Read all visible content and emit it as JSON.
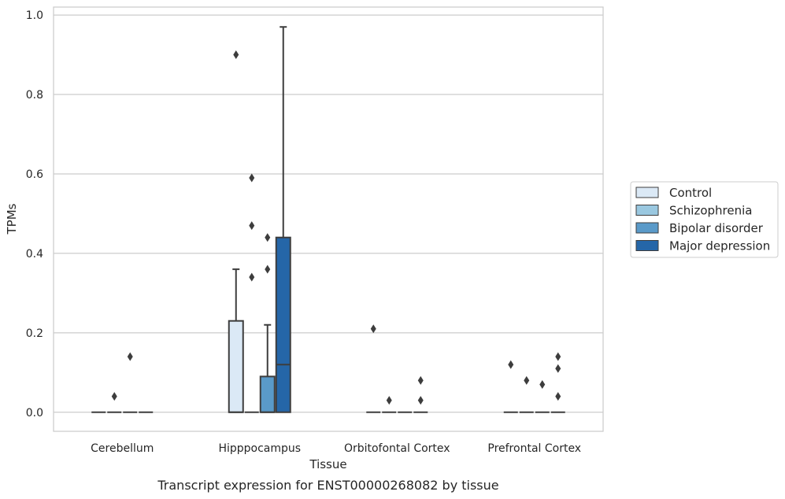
{
  "chart_data": {
    "type": "boxplot",
    "xlabel": "Tissue",
    "ylabel": "TPMs",
    "caption": "Transcript expression for ENST00000268082 by tissue",
    "ylim": [
      -0.048,
      1.02
    ],
    "yticks": [
      0.0,
      0.2,
      0.4,
      0.6,
      0.8,
      1.0
    ],
    "ytick_labels": [
      "0.0",
      "0.2",
      "0.4",
      "0.6",
      "0.8",
      "1.0"
    ],
    "grid": "horizontal",
    "legend_position": "right",
    "categories": [
      "Cerebellum",
      "Hipppocampus",
      "Orbitofontal Cortex",
      "Prefrontal Cortex"
    ],
    "series": [
      {
        "name": "Control",
        "color": "#dbe9f6",
        "boxes": [
          {
            "q1": 0.0,
            "median": 0.0,
            "q3": 0.0,
            "whisker_low": 0.0,
            "whisker_high": 0.0,
            "outliers": []
          },
          {
            "q1": 0.0,
            "median": 0.0,
            "q3": 0.23,
            "whisker_low": 0.0,
            "whisker_high": 0.36,
            "outliers": [
              0.9
            ]
          },
          {
            "q1": 0.0,
            "median": 0.0,
            "q3": 0.0,
            "whisker_low": 0.0,
            "whisker_high": 0.0,
            "outliers": [
              0.21
            ]
          },
          {
            "q1": 0.0,
            "median": 0.0,
            "q3": 0.0,
            "whisker_low": 0.0,
            "whisker_high": 0.0,
            "outliers": [
              0.12
            ]
          }
        ]
      },
      {
        "name": "Schizophrenia",
        "color": "#9ac8e0",
        "boxes": [
          {
            "q1": 0.0,
            "median": 0.0,
            "q3": 0.0,
            "whisker_low": 0.0,
            "whisker_high": 0.0,
            "outliers": [
              0.04
            ]
          },
          {
            "q1": 0.0,
            "median": 0.0,
            "q3": 0.0,
            "whisker_low": 0.0,
            "whisker_high": 0.0,
            "outliers": [
              0.59,
              0.47,
              0.34
            ]
          },
          {
            "q1": 0.0,
            "median": 0.0,
            "q3": 0.0,
            "whisker_low": 0.0,
            "whisker_high": 0.0,
            "outliers": [
              0.03
            ]
          },
          {
            "q1": 0.0,
            "median": 0.0,
            "q3": 0.0,
            "whisker_low": 0.0,
            "whisker_high": 0.0,
            "outliers": [
              0.08
            ]
          }
        ]
      },
      {
        "name": "Bipolar disorder",
        "color": "#5a9ac9",
        "boxes": [
          {
            "q1": 0.0,
            "median": 0.0,
            "q3": 0.0,
            "whisker_low": 0.0,
            "whisker_high": 0.0,
            "outliers": [
              0.14
            ]
          },
          {
            "q1": 0.0,
            "median": 0.0,
            "q3": 0.09,
            "whisker_low": 0.0,
            "whisker_high": 0.22,
            "outliers": [
              0.44,
              0.36
            ]
          },
          {
            "q1": 0.0,
            "median": 0.0,
            "q3": 0.0,
            "whisker_low": 0.0,
            "whisker_high": 0.0,
            "outliers": []
          },
          {
            "q1": 0.0,
            "median": 0.0,
            "q3": 0.0,
            "whisker_low": 0.0,
            "whisker_high": 0.0,
            "outliers": [
              0.07
            ]
          }
        ]
      },
      {
        "name": "Major depression",
        "color": "#2566a8",
        "boxes": [
          {
            "q1": 0.0,
            "median": 0.0,
            "q3": 0.0,
            "whisker_low": 0.0,
            "whisker_high": 0.0,
            "outliers": []
          },
          {
            "q1": 0.0,
            "median": 0.12,
            "q3": 0.44,
            "whisker_low": 0.0,
            "whisker_high": 0.97,
            "outliers": []
          },
          {
            "q1": 0.0,
            "median": 0.0,
            "q3": 0.0,
            "whisker_low": 0.0,
            "whisker_high": 0.0,
            "outliers": [
              0.08,
              0.03
            ]
          },
          {
            "q1": 0.0,
            "median": 0.0,
            "q3": 0.0,
            "whisker_low": 0.0,
            "whisker_high": 0.0,
            "outliers": [
              0.14,
              0.11,
              0.04
            ]
          }
        ]
      }
    ]
  }
}
